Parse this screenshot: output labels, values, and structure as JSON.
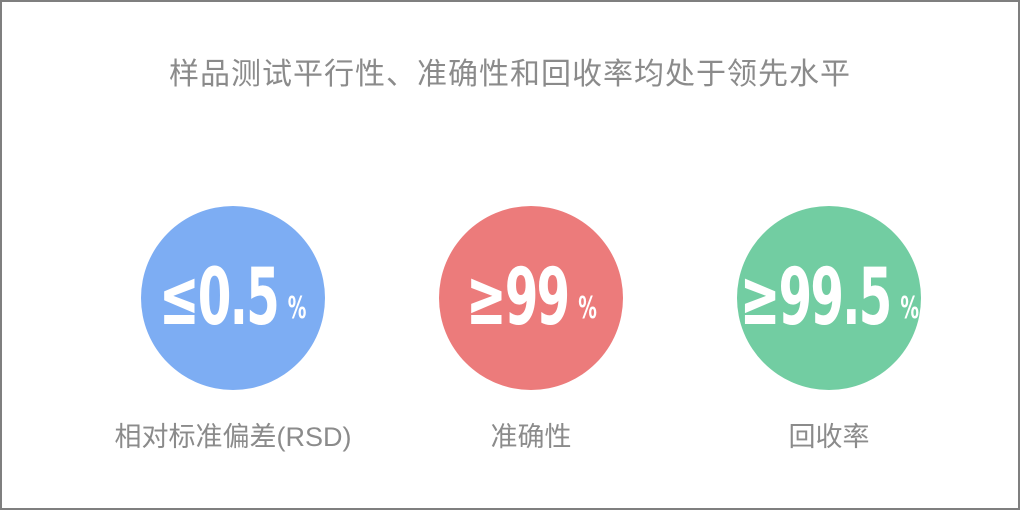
{
  "slide": {
    "title": "样品测试平行性、准确性和回收率均处于领先水平"
  },
  "metrics": [
    {
      "value_text": "≤0.5",
      "unit": "%",
      "label": "相对标准偏差(RSD)",
      "color": "#7dadf3"
    },
    {
      "value_text": "≥99",
      "unit": "%",
      "label": "准确性",
      "color": "#ec7b7b"
    },
    {
      "value_text": "≥99.5",
      "unit": "%",
      "label": "回收率",
      "color": "#72cda2"
    }
  ],
  "colors": {
    "background": "#ffffff",
    "border": "#7f7f7f",
    "title_text": "#8b8b8b",
    "label_text": "#8b8b8b",
    "circle_value_text": "#ffffff",
    "circle_blue": "#7dadf3",
    "circle_red": "#ec7b7b",
    "circle_green": "#72cda2"
  }
}
